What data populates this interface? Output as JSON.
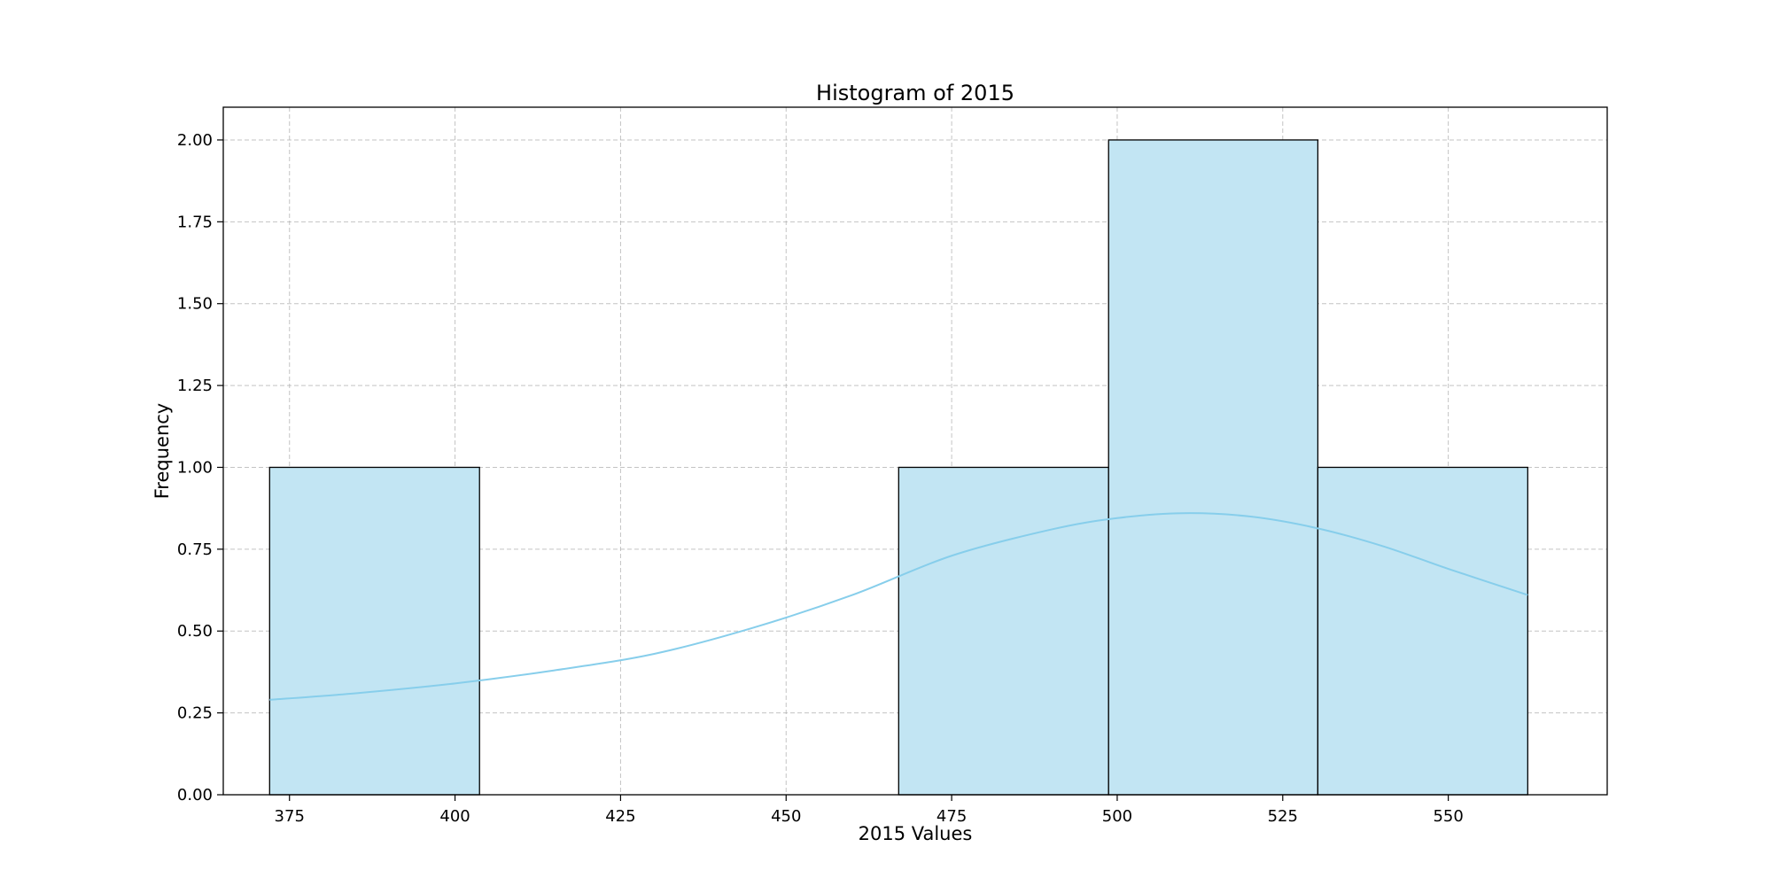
{
  "chart_data": {
    "type": "bar",
    "title": "Histogram of 2015",
    "xlabel": "2015 Values",
    "ylabel": "Frequency",
    "xlim": [
      365,
      574
    ],
    "ylim": [
      0,
      2.1
    ],
    "xticks": [
      375,
      400,
      425,
      450,
      475,
      500,
      525,
      550
    ],
    "yticks": [
      0,
      0.25,
      0.5,
      0.75,
      1.0,
      1.25,
      1.5,
      1.75,
      2.0
    ],
    "ytick_labels": [
      "0.00",
      "0.25",
      "0.50",
      "0.75",
      "1.00",
      "1.25",
      "1.50",
      "1.75",
      "2.00"
    ],
    "bins": [
      {
        "x0": 372,
        "x1": 403.7,
        "count": 1
      },
      {
        "x0": 403.7,
        "x1": 435.3,
        "count": 0
      },
      {
        "x0": 435.3,
        "x1": 467.0,
        "count": 0
      },
      {
        "x0": 467.0,
        "x1": 498.7,
        "count": 1
      },
      {
        "x0": 498.7,
        "x1": 530.3,
        "count": 2
      },
      {
        "x0": 530.3,
        "x1": 562.0,
        "count": 1
      }
    ],
    "kde": {
      "x": [
        372,
        385,
        400,
        415,
        430,
        445,
        460,
        475,
        490,
        500,
        510,
        520,
        530,
        540,
        550,
        562
      ],
      "y": [
        0.29,
        0.31,
        0.34,
        0.38,
        0.43,
        0.51,
        0.61,
        0.73,
        0.81,
        0.845,
        0.86,
        0.85,
        0.815,
        0.76,
        0.69,
        0.61
      ]
    },
    "grid": true,
    "colors": {
      "bar_fill": "#c2e5f3",
      "bar_edge": "#000000",
      "kde_line": "#87ceeb"
    }
  }
}
